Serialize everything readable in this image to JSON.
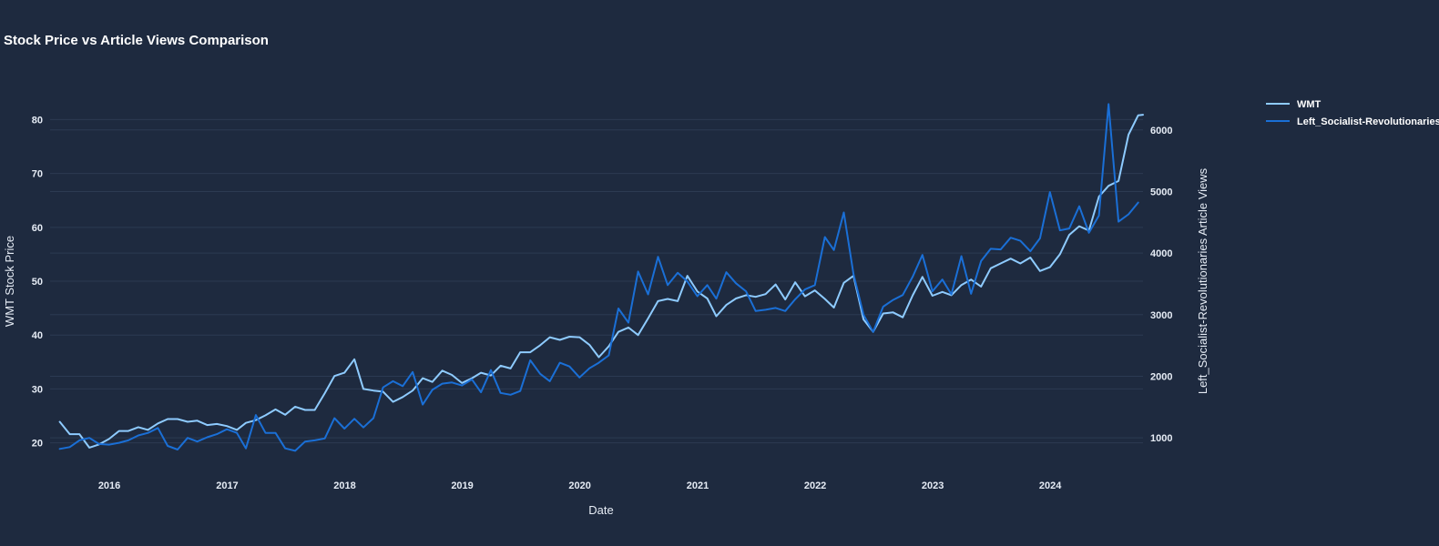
{
  "chart_data": {
    "type": "line",
    "title": "Stock Price vs Article Views Comparison",
    "xlabel": "Date",
    "ylabel_left": "WMT Stock Price",
    "ylabel_right": "Left_Socialist-Revolutionaries Article Views",
    "x_ticks": [
      "2016",
      "2017",
      "2018",
      "2019",
      "2020",
      "2021",
      "2022",
      "2023",
      "2024"
    ],
    "y_left_ticks": [
      20,
      30,
      40,
      50,
      60,
      70,
      80
    ],
    "y_right_ticks": [
      1000,
      2000,
      3000,
      4000,
      5000,
      6000
    ],
    "y_left_range": [
      15.2,
      87.0
    ],
    "y_right_range": [
      500,
      6780
    ],
    "x_range": [
      "2015-07-01",
      "2024-10-15"
    ],
    "grid": true,
    "legend_position": "top-right",
    "series": [
      {
        "name": "WMT",
        "axis": "left",
        "color": "#8ecbff",
        "points": [
          [
            "2015-07-31",
            23.9
          ],
          [
            "2015-08-31",
            21.6
          ],
          [
            "2015-09-30",
            21.6
          ],
          [
            "2015-10-31",
            19.1
          ],
          [
            "2015-11-30",
            19.7
          ],
          [
            "2015-12-31",
            20.7
          ],
          [
            "2016-01-31",
            22.2
          ],
          [
            "2016-02-29",
            22.2
          ],
          [
            "2016-03-31",
            22.9
          ],
          [
            "2016-04-30",
            22.4
          ],
          [
            "2016-05-31",
            23.6
          ],
          [
            "2016-06-30",
            24.4
          ],
          [
            "2016-07-31",
            24.4
          ],
          [
            "2016-08-31",
            23.9
          ],
          [
            "2016-09-30",
            24.1
          ],
          [
            "2016-10-31",
            23.3
          ],
          [
            "2016-11-30",
            23.5
          ],
          [
            "2016-12-31",
            23.1
          ],
          [
            "2017-01-31",
            22.4
          ],
          [
            "2017-02-28",
            23.7
          ],
          [
            "2017-03-31",
            24.2
          ],
          [
            "2017-04-30",
            25.1
          ],
          [
            "2017-05-31",
            26.2
          ],
          [
            "2017-06-30",
            25.2
          ],
          [
            "2017-07-31",
            26.7
          ],
          [
            "2017-08-31",
            26.1
          ],
          [
            "2017-09-30",
            26.1
          ],
          [
            "2017-10-31",
            29.2
          ],
          [
            "2017-11-30",
            32.4
          ],
          [
            "2017-12-31",
            33.0
          ],
          [
            "2018-01-31",
            35.5
          ],
          [
            "2018-02-28",
            30.0
          ],
          [
            "2018-03-31",
            29.7
          ],
          [
            "2018-04-30",
            29.5
          ],
          [
            "2018-05-31",
            27.6
          ],
          [
            "2018-06-30",
            28.5
          ],
          [
            "2018-07-31",
            29.7
          ],
          [
            "2018-08-31",
            32.0
          ],
          [
            "2018-09-30",
            31.3
          ],
          [
            "2018-10-31",
            33.4
          ],
          [
            "2018-11-30",
            32.6
          ],
          [
            "2018-12-31",
            31.1
          ],
          [
            "2019-01-31",
            32.0
          ],
          [
            "2019-02-28",
            33.0
          ],
          [
            "2019-03-31",
            32.5
          ],
          [
            "2019-04-30",
            34.3
          ],
          [
            "2019-05-31",
            33.8
          ],
          [
            "2019-06-30",
            36.8
          ],
          [
            "2019-07-31",
            36.8
          ],
          [
            "2019-08-31",
            38.1
          ],
          [
            "2019-09-30",
            39.6
          ],
          [
            "2019-10-31",
            39.1
          ],
          [
            "2019-11-30",
            39.7
          ],
          [
            "2019-12-31",
            39.6
          ],
          [
            "2020-01-31",
            38.2
          ],
          [
            "2020-02-29",
            35.9
          ],
          [
            "2020-03-31",
            37.9
          ],
          [
            "2020-04-30",
            40.6
          ],
          [
            "2020-05-31",
            41.4
          ],
          [
            "2020-06-30",
            40.0
          ],
          [
            "2020-07-31",
            43.1
          ],
          [
            "2020-08-31",
            46.3
          ],
          [
            "2020-09-30",
            46.7
          ],
          [
            "2020-10-31",
            46.3
          ],
          [
            "2020-11-30",
            51.0
          ],
          [
            "2020-12-31",
            48.1
          ],
          [
            "2021-01-31",
            46.8
          ],
          [
            "2021-02-28",
            43.5
          ],
          [
            "2021-03-31",
            45.6
          ],
          [
            "2021-04-30",
            46.8
          ],
          [
            "2021-05-31",
            47.4
          ],
          [
            "2021-06-30",
            47.1
          ],
          [
            "2021-07-31",
            47.6
          ],
          [
            "2021-08-31",
            49.4
          ],
          [
            "2021-09-30",
            46.6
          ],
          [
            "2021-10-31",
            49.8
          ],
          [
            "2021-11-30",
            47.2
          ],
          [
            "2021-12-31",
            48.3
          ],
          [
            "2022-01-31",
            46.7
          ],
          [
            "2022-02-28",
            45.1
          ],
          [
            "2022-03-31",
            49.7
          ],
          [
            "2022-04-30",
            51.0
          ],
          [
            "2022-05-31",
            42.9
          ],
          [
            "2022-06-30",
            40.6
          ],
          [
            "2022-07-31",
            44.0
          ],
          [
            "2022-08-31",
            44.2
          ],
          [
            "2022-09-30",
            43.3
          ],
          [
            "2022-10-31",
            47.4
          ],
          [
            "2022-11-30",
            50.8
          ],
          [
            "2022-12-31",
            47.3
          ],
          [
            "2023-01-31",
            48.0
          ],
          [
            "2023-02-28",
            47.4
          ],
          [
            "2023-03-31",
            49.3
          ],
          [
            "2023-04-30",
            50.3
          ],
          [
            "2023-05-31",
            49.0
          ],
          [
            "2023-06-30",
            52.4
          ],
          [
            "2023-07-31",
            53.3
          ],
          [
            "2023-08-31",
            54.2
          ],
          [
            "2023-09-30",
            53.3
          ],
          [
            "2023-10-31",
            54.4
          ],
          [
            "2023-11-30",
            51.9
          ],
          [
            "2023-12-31",
            52.6
          ],
          [
            "2024-01-31",
            55.0
          ],
          [
            "2024-02-29",
            58.6
          ],
          [
            "2024-03-31",
            60.2
          ],
          [
            "2024-04-30",
            59.4
          ],
          [
            "2024-05-31",
            65.7
          ],
          [
            "2024-06-30",
            67.7
          ],
          [
            "2024-07-31",
            68.6
          ],
          [
            "2024-08-31",
            77.2
          ],
          [
            "2024-09-30",
            80.8
          ],
          [
            "2024-10-15",
            80.9
          ]
        ]
      },
      {
        "name": "Left_Socialist-Revolutionaries",
        "axis": "right",
        "color": "#1a6fd6",
        "points": [
          [
            "2015-07-31",
            820
          ],
          [
            "2015-08-31",
            850
          ],
          [
            "2015-09-30",
            960
          ],
          [
            "2015-10-31",
            1000
          ],
          [
            "2015-11-30",
            900
          ],
          [
            "2015-12-31",
            890
          ],
          [
            "2016-01-31",
            920
          ],
          [
            "2016-02-29",
            960
          ],
          [
            "2016-03-31",
            1040
          ],
          [
            "2016-04-30",
            1080
          ],
          [
            "2016-05-31",
            1160
          ],
          [
            "2016-06-30",
            870
          ],
          [
            "2016-07-31",
            810
          ],
          [
            "2016-08-31",
            1000
          ],
          [
            "2016-09-30",
            940
          ],
          [
            "2016-10-31",
            1010
          ],
          [
            "2016-11-30",
            1060
          ],
          [
            "2016-12-31",
            1140
          ],
          [
            "2017-01-31",
            1080
          ],
          [
            "2017-02-28",
            830
          ],
          [
            "2017-03-31",
            1370
          ],
          [
            "2017-04-30",
            1080
          ],
          [
            "2017-05-31",
            1080
          ],
          [
            "2017-06-30",
            830
          ],
          [
            "2017-07-31",
            790
          ],
          [
            "2017-08-31",
            940
          ],
          [
            "2017-09-30",
            960
          ],
          [
            "2017-10-31",
            990
          ],
          [
            "2017-11-30",
            1320
          ],
          [
            "2017-12-31",
            1150
          ],
          [
            "2018-01-31",
            1310
          ],
          [
            "2018-02-28",
            1170
          ],
          [
            "2018-03-31",
            1320
          ],
          [
            "2018-04-30",
            1820
          ],
          [
            "2018-05-31",
            1920
          ],
          [
            "2018-06-30",
            1840
          ],
          [
            "2018-07-31",
            2070
          ],
          [
            "2018-08-31",
            1540
          ],
          [
            "2018-09-30",
            1780
          ],
          [
            "2018-10-31",
            1880
          ],
          [
            "2018-11-30",
            1900
          ],
          [
            "2018-12-31",
            1850
          ],
          [
            "2019-01-31",
            1950
          ],
          [
            "2019-02-28",
            1740
          ],
          [
            "2019-03-31",
            2100
          ],
          [
            "2019-04-30",
            1730
          ],
          [
            "2019-05-31",
            1700
          ],
          [
            "2019-06-30",
            1760
          ],
          [
            "2019-07-31",
            2260
          ],
          [
            "2019-08-31",
            2040
          ],
          [
            "2019-09-30",
            1920
          ],
          [
            "2019-10-31",
            2220
          ],
          [
            "2019-11-30",
            2160
          ],
          [
            "2019-12-31",
            1980
          ],
          [
            "2020-01-31",
            2130
          ],
          [
            "2020-02-29",
            2220
          ],
          [
            "2020-03-31",
            2340
          ],
          [
            "2020-04-30",
            3100
          ],
          [
            "2020-05-31",
            2870
          ],
          [
            "2020-06-30",
            3700
          ],
          [
            "2020-07-31",
            3330
          ],
          [
            "2020-08-31",
            3940
          ],
          [
            "2020-09-30",
            3480
          ],
          [
            "2020-10-31",
            3680
          ],
          [
            "2020-11-30",
            3540
          ],
          [
            "2020-12-31",
            3300
          ],
          [
            "2021-01-31",
            3480
          ],
          [
            "2021-02-28",
            3260
          ],
          [
            "2021-03-31",
            3690
          ],
          [
            "2021-04-30",
            3510
          ],
          [
            "2021-05-31",
            3380
          ],
          [
            "2021-06-30",
            3060
          ],
          [
            "2021-07-31",
            3080
          ],
          [
            "2021-08-31",
            3110
          ],
          [
            "2021-09-30",
            3060
          ],
          [
            "2021-10-31",
            3250
          ],
          [
            "2021-11-30",
            3410
          ],
          [
            "2021-12-31",
            3480
          ],
          [
            "2022-01-31",
            4260
          ],
          [
            "2022-02-28",
            4050
          ],
          [
            "2022-03-31",
            4660
          ],
          [
            "2022-04-30",
            3660
          ],
          [
            "2022-05-31",
            3000
          ],
          [
            "2022-06-30",
            2720
          ],
          [
            "2022-07-31",
            3130
          ],
          [
            "2022-08-31",
            3240
          ],
          [
            "2022-09-30",
            3320
          ],
          [
            "2022-10-31",
            3620
          ],
          [
            "2022-11-30",
            3970
          ],
          [
            "2022-12-31",
            3380
          ],
          [
            "2023-01-31",
            3570
          ],
          [
            "2023-02-28",
            3330
          ],
          [
            "2023-03-31",
            3950
          ],
          [
            "2023-04-30",
            3340
          ],
          [
            "2023-05-31",
            3870
          ],
          [
            "2023-06-30",
            4070
          ],
          [
            "2023-07-31",
            4060
          ],
          [
            "2023-08-31",
            4250
          ],
          [
            "2023-09-30",
            4200
          ],
          [
            "2023-10-31",
            4030
          ],
          [
            "2023-11-30",
            4240
          ],
          [
            "2023-12-31",
            4990
          ],
          [
            "2024-01-31",
            4370
          ],
          [
            "2024-02-29",
            4400
          ],
          [
            "2024-03-31",
            4760
          ],
          [
            "2024-04-30",
            4330
          ],
          [
            "2024-05-31",
            4610
          ],
          [
            "2024-06-30",
            6420
          ],
          [
            "2024-07-31",
            4510
          ],
          [
            "2024-08-31",
            4630
          ],
          [
            "2024-09-30",
            4820
          ]
        ]
      }
    ]
  }
}
